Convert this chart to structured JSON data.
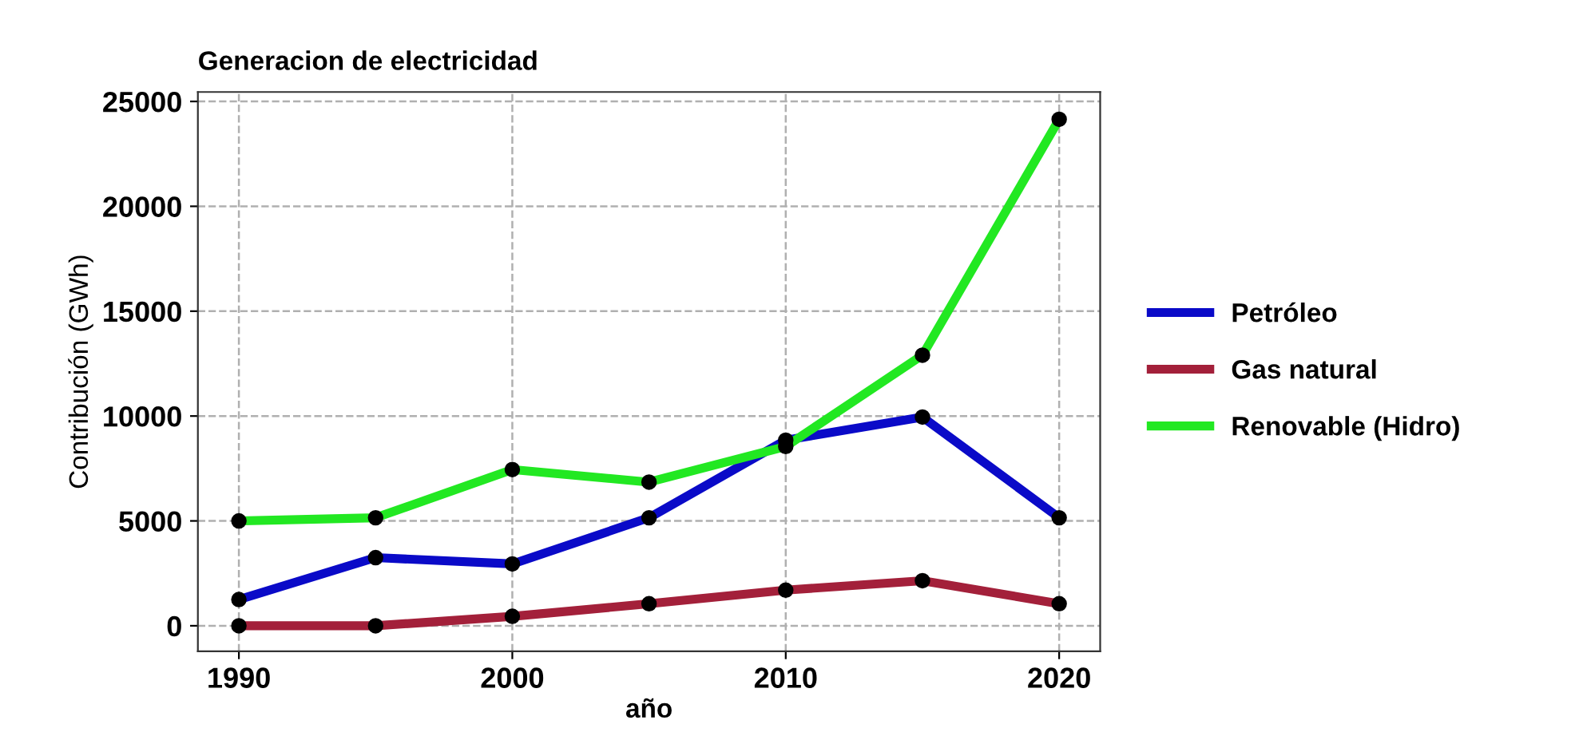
{
  "chart_data": {
    "type": "line",
    "title": "Generacion de electricidad",
    "xlabel": "año",
    "ylabel": "Contribución (GWh)",
    "x": [
      1990,
      1995,
      2000,
      2005,
      2010,
      2015,
      2020
    ],
    "series": [
      {
        "name": "Petróleo",
        "color": "#0a0ac8",
        "values": [
          1250,
          3250,
          2950,
          5150,
          8850,
          9950,
          5150
        ]
      },
      {
        "name": "Gas natural",
        "color": "#a3203a",
        "values": [
          0,
          0,
          450,
          1050,
          1700,
          2150,
          1050
        ]
      },
      {
        "name": "Renovable (Hidro)",
        "color": "#22e822",
        "values": [
          5000,
          5150,
          7450,
          6850,
          8550,
          12900,
          24150
        ]
      }
    ],
    "xlim": [
      1988.5,
      2021.5
    ],
    "xticks": [
      1990,
      2000,
      2010,
      2020
    ],
    "ylim": [
      -1220,
      25450
    ],
    "yticks": [
      0,
      5000,
      10000,
      15000,
      20000,
      25000
    ],
    "grid": true,
    "legend": "right",
    "marker": "circle",
    "line_style": "solid"
  }
}
